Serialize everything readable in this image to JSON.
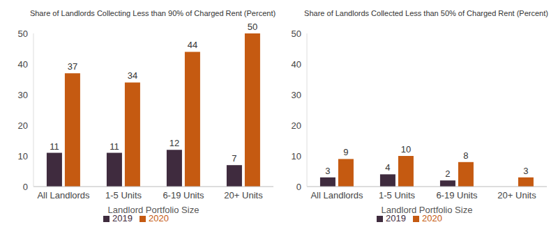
{
  "chart_data": [
    {
      "type": "bar",
      "title": "Share of Landlords Collecting Less than 90% of Charged Rent (Percent)",
      "x_label": "Landlord Portfolio Size",
      "categories": [
        "All Landlords",
        "1-5 Units",
        "6-19 Units",
        "20+ Units"
      ],
      "series": [
        {
          "name": "2019",
          "color": "#3f2b3e",
          "values": [
            11,
            11,
            12,
            7
          ]
        },
        {
          "name": "2020",
          "color": "#c55a11",
          "values": [
            37,
            34,
            44,
            50
          ]
        }
      ],
      "ylim": [
        0,
        50
      ],
      "yticks": [
        0,
        10,
        20,
        30,
        40,
        50
      ],
      "grid": false,
      "legend": "bottom",
      "data_labels": true
    },
    {
      "type": "bar",
      "title": "Share of Landlords Collected Less than 50% of Charged Rent (Percent)",
      "x_label": "Landlord Portfolio Size",
      "categories": [
        "All Landlords",
        "1-5 Units",
        "6-19 Units",
        "20+ Units"
      ],
      "series": [
        {
          "name": "2019",
          "color": "#3f2b3e",
          "values": [
            3,
            4,
            2,
            0
          ]
        },
        {
          "name": "2020",
          "color": "#c55a11",
          "values": [
            9,
            10,
            8,
            3
          ]
        }
      ],
      "ylim": [
        0,
        50
      ],
      "yticks": [
        0,
        10,
        20,
        30,
        40,
        50
      ],
      "grid": false,
      "legend": "bottom",
      "data_labels": true
    }
  ]
}
